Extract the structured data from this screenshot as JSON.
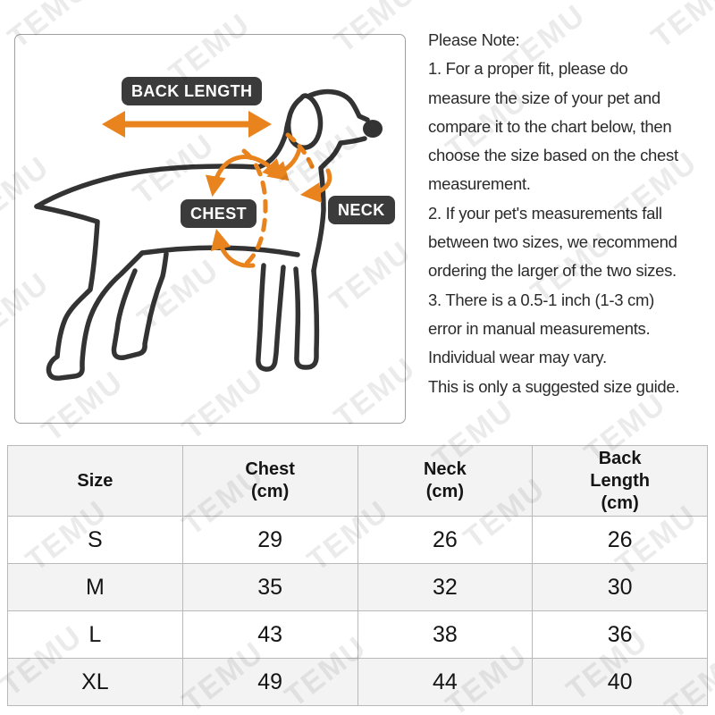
{
  "watermark": {
    "text": "TEMU"
  },
  "diagram": {
    "back_length_label": "BACK LENGTH",
    "chest_label": "CHEST",
    "neck_label": "NECK",
    "accent_orange": "#e8831d",
    "label_bg": "#3b3b3b",
    "outline_color": "#333333"
  },
  "note": {
    "lines": [
      "Please Note:",
      "1. For a proper fit, please do",
      "measure the size of your pet and",
      "compare it to the chart below, then",
      "choose the size based on the chest",
      "measurement.",
      "2. If your pet's measurements fall",
      "between two sizes, we recommend",
      "ordering the larger of the two sizes.",
      "3. There is a 0.5-1 inch (1-3 cm)",
      "error in manual measurements.",
      "Individual wear may vary.",
      "This is only a suggested size guide."
    ]
  },
  "size_table": {
    "headers": [
      "Size",
      "Chest\n(cm)",
      "Neck\n(cm)",
      "Back\nLength\n(cm)"
    ],
    "rows": [
      {
        "size": "S",
        "chest": "29",
        "neck": "26",
        "back_length": "26"
      },
      {
        "size": "M",
        "chest": "35",
        "neck": "32",
        "back_length": "30"
      },
      {
        "size": "L",
        "chest": "43",
        "neck": "38",
        "back_length": "36"
      },
      {
        "size": "XL",
        "chest": "49",
        "neck": "44",
        "back_length": "40"
      }
    ],
    "header_bg": "#f3f3f3",
    "border_color": "#b9b9b9"
  }
}
